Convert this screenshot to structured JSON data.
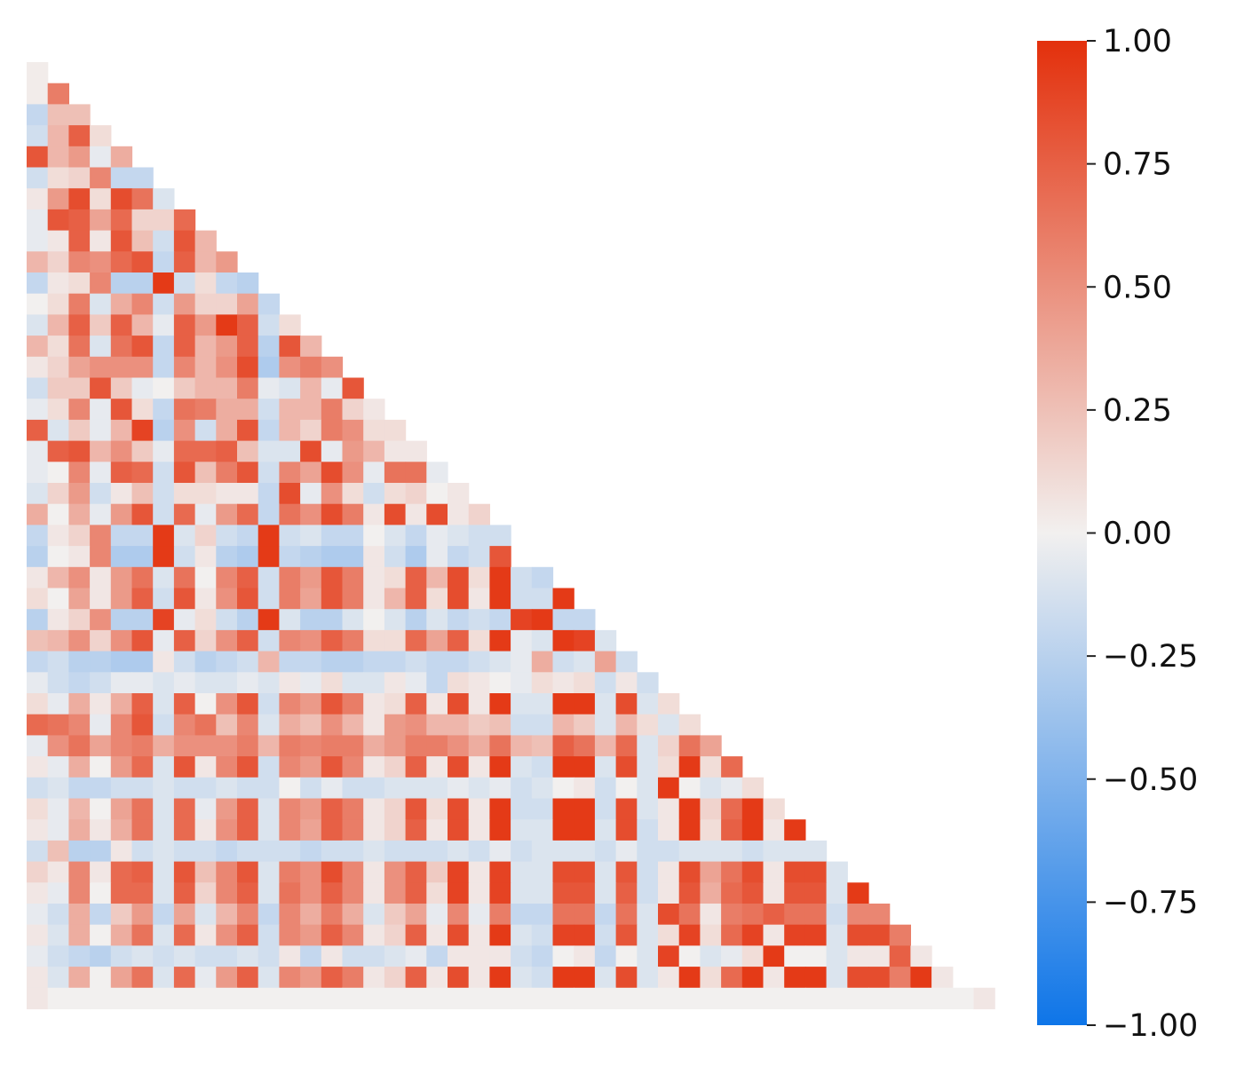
{
  "chart_data": {
    "type": "heatmap",
    "layout": "lower-triangle",
    "size": 46,
    "value_range": [
      -1,
      1
    ],
    "colorbar": {
      "colors": {
        "low": "#0E75E8",
        "mid": "#F2F0EF",
        "high": "#E3300C"
      },
      "ticks": [
        1.0,
        0.75,
        0.5,
        0.25,
        0.0,
        -0.25,
        -0.5,
        -0.75,
        -1.0
      ],
      "tick_labels": [
        "1.00",
        "0.75",
        "0.50",
        "0.25",
        "0.00",
        "−0.25",
        "−0.50",
        "−0.75",
        "−1.00"
      ]
    },
    "rows": [
      [
        0.02
      ],
      [
        0.02,
        0.6
      ],
      [
        -0.2,
        0.25,
        0.25
      ],
      [
        -0.15,
        0.3,
        0.75,
        0.1
      ],
      [
        0.8,
        0.3,
        0.45,
        -0.05,
        0.35
      ],
      [
        -0.15,
        0.1,
        0.15,
        0.55,
        -0.2,
        -0.2
      ],
      [
        0.05,
        0.45,
        0.85,
        0.1,
        0.85,
        0.65,
        -0.1
      ],
      [
        -0.05,
        0.8,
        0.75,
        0.4,
        0.7,
        0.15,
        0.15,
        0.7
      ],
      [
        -0.05,
        0.05,
        0.75,
        0.05,
        0.8,
        0.25,
        -0.15,
        0.8,
        0.3
      ],
      [
        0.3,
        0.15,
        0.55,
        0.5,
        0.7,
        0.8,
        -0.2,
        0.75,
        0.3,
        0.45
      ],
      [
        -0.2,
        0.05,
        0.1,
        0.55,
        -0.25,
        -0.25,
        0.95,
        -0.15,
        0.1,
        -0.2,
        -0.25
      ],
      [
        0.0,
        0.1,
        0.6,
        -0.1,
        0.35,
        0.55,
        -0.15,
        0.45,
        0.15,
        0.15,
        0.4,
        -0.2
      ],
      [
        -0.1,
        0.3,
        0.75,
        0.2,
        0.75,
        0.3,
        -0.05,
        0.75,
        0.45,
        0.95,
        0.75,
        -0.15,
        0.1
      ],
      [
        0.3,
        0.1,
        0.65,
        -0.1,
        0.65,
        0.8,
        -0.2,
        0.75,
        0.3,
        0.45,
        0.75,
        -0.25,
        0.8,
        0.3
      ],
      [
        0.05,
        0.15,
        0.4,
        0.5,
        0.5,
        0.5,
        -0.2,
        0.55,
        0.3,
        0.5,
        0.85,
        -0.3,
        0.5,
        0.6,
        0.5
      ],
      [
        -0.15,
        0.2,
        0.2,
        0.8,
        0.2,
        -0.05,
        0.0,
        0.2,
        0.3,
        0.3,
        0.6,
        -0.05,
        -0.1,
        0.3,
        -0.05,
        0.8
      ],
      [
        -0.05,
        0.1,
        0.55,
        -0.05,
        0.8,
        0.1,
        -0.2,
        0.65,
        0.6,
        0.35,
        0.35,
        -0.15,
        0.3,
        0.3,
        0.6,
        0.15,
        0.05
      ],
      [
        0.75,
        -0.1,
        0.2,
        -0.05,
        0.3,
        0.9,
        -0.25,
        0.5,
        -0.15,
        0.35,
        0.8,
        -0.2,
        0.3,
        0.15,
        0.6,
        0.5,
        0.1,
        0.1
      ],
      [
        -0.05,
        0.75,
        0.8,
        0.3,
        0.5,
        0.2,
        -0.05,
        0.7,
        0.7,
        0.75,
        0.25,
        -0.1,
        -0.1,
        0.85,
        -0.05,
        0.45,
        0.3,
        0.05,
        0.05
      ],
      [
        -0.05,
        0.0,
        0.55,
        -0.05,
        0.75,
        0.7,
        -0.15,
        0.8,
        0.25,
        0.6,
        0.8,
        -0.15,
        0.55,
        0.4,
        0.85,
        0.5,
        -0.05,
        0.65,
        0.65,
        -0.05
      ],
      [
        -0.1,
        0.15,
        0.45,
        -0.15,
        0.05,
        0.25,
        -0.15,
        0.1,
        0.1,
        0.05,
        0.05,
        -0.2,
        0.85,
        -0.05,
        0.5,
        0.1,
        -0.15,
        0.1,
        0.15,
        0.0,
        0.05
      ],
      [
        0.35,
        0.0,
        0.35,
        -0.05,
        0.45,
        0.8,
        -0.15,
        0.7,
        -0.05,
        0.45,
        0.7,
        -0.2,
        0.65,
        0.5,
        0.85,
        0.6,
        0.05,
        0.85,
        0.05,
        0.85,
        0.05,
        0.15
      ],
      [
        -0.2,
        0.05,
        0.15,
        0.55,
        -0.2,
        -0.2,
        0.95,
        -0.1,
        0.15,
        -0.15,
        -0.2,
        0.95,
        -0.15,
        -0.1,
        -0.2,
        -0.2,
        0.0,
        -0.1,
        -0.2,
        -0.05,
        -0.1,
        -0.15,
        -0.15
      ],
      [
        -0.25,
        0.0,
        0.05,
        0.55,
        -0.3,
        -0.3,
        0.95,
        -0.15,
        0.05,
        -0.25,
        -0.3,
        0.95,
        -0.2,
        -0.25,
        -0.3,
        -0.3,
        0.05,
        -0.15,
        -0.3,
        -0.05,
        -0.2,
        -0.15,
        0.8
      ],
      [
        0.05,
        0.3,
        0.5,
        0.05,
        0.45,
        0.65,
        -0.1,
        0.65,
        0.0,
        0.55,
        0.75,
        -0.15,
        0.6,
        0.45,
        0.8,
        0.6,
        0.05,
        0.1,
        0.75,
        0.3,
        0.85,
        0.1,
        0.95,
        -0.15,
        -0.2
      ],
      [
        0.1,
        0.0,
        0.4,
        0.05,
        0.45,
        0.75,
        -0.15,
        0.8,
        0.05,
        0.5,
        0.8,
        -0.15,
        0.6,
        0.4,
        0.8,
        0.6,
        0.05,
        0.3,
        0.75,
        0.1,
        0.85,
        0.05,
        0.95,
        -0.15,
        -0.15,
        0.95
      ],
      [
        -0.25,
        0.05,
        0.15,
        0.5,
        -0.25,
        -0.25,
        0.9,
        -0.05,
        0.1,
        -0.15,
        -0.25,
        0.95,
        -0.1,
        -0.25,
        -0.25,
        -0.1,
        0.0,
        -0.1,
        -0.25,
        -0.1,
        -0.2,
        -0.15,
        -0.2,
        0.9,
        0.95,
        -0.2,
        -0.2
      ],
      [
        0.25,
        0.3,
        0.5,
        0.15,
        0.5,
        0.8,
        -0.05,
        0.75,
        0.15,
        0.5,
        0.75,
        -0.15,
        0.55,
        0.5,
        0.75,
        0.6,
        0.1,
        0.1,
        0.7,
        0.4,
        0.75,
        0.1,
        0.95,
        -0.05,
        -0.1,
        0.95,
        0.9,
        -0.1
      ],
      [
        -0.2,
        -0.15,
        -0.25,
        -0.25,
        -0.3,
        -0.3,
        0.05,
        -0.15,
        -0.25,
        -0.2,
        -0.15,
        0.3,
        -0.2,
        -0.2,
        -0.25,
        -0.25,
        -0.2,
        -0.2,
        -0.15,
        -0.2,
        -0.2,
        -0.15,
        -0.1,
        -0.05,
        0.35,
        -0.15,
        -0.1,
        0.4,
        -0.15
      ],
      [
        -0.05,
        -0.15,
        -0.2,
        -0.15,
        -0.05,
        -0.05,
        -0.1,
        -0.05,
        -0.1,
        -0.1,
        -0.05,
        -0.1,
        0.05,
        -0.05,
        0.1,
        -0.1,
        -0.1,
        0.05,
        -0.05,
        -0.2,
        0.1,
        0.05,
        0.0,
        -0.05,
        0.1,
        0.05,
        0.1,
        -0.15,
        0.05,
        -0.15
      ],
      [
        0.1,
        -0.05,
        0.35,
        0.05,
        0.35,
        0.75,
        -0.1,
        0.75,
        0.0,
        0.5,
        0.8,
        -0.15,
        0.55,
        0.45,
        0.8,
        0.6,
        0.05,
        0.1,
        0.75,
        0.05,
        0.85,
        0.05,
        0.95,
        -0.1,
        -0.1,
        0.95,
        0.95,
        -0.1,
        0.85,
        -0.1,
        0.1
      ],
      [
        0.7,
        0.65,
        0.55,
        -0.05,
        0.55,
        0.8,
        -0.15,
        0.55,
        0.65,
        0.25,
        0.55,
        -0.1,
        0.35,
        0.25,
        0.5,
        0.3,
        0.05,
        0.45,
        0.5,
        0.3,
        0.3,
        0.2,
        0.25,
        -0.15,
        -0.15,
        0.3,
        0.2,
        -0.1,
        0.3,
        0.1,
        -0.1,
        0.1
      ],
      [
        -0.05,
        0.5,
        0.65,
        0.4,
        0.55,
        0.6,
        0.35,
        0.5,
        0.5,
        0.5,
        0.6,
        0.3,
        0.6,
        0.55,
        0.6,
        0.6,
        0.35,
        0.45,
        0.6,
        0.6,
        0.5,
        0.35,
        0.65,
        0.3,
        0.25,
        0.75,
        0.65,
        0.3,
        0.7,
        -0.1,
        0.15,
        0.65,
        0.4
      ],
      [
        0.05,
        -0.05,
        0.35,
        0.0,
        0.45,
        0.7,
        -0.1,
        0.8,
        0.05,
        0.55,
        0.8,
        -0.15,
        0.55,
        0.45,
        0.8,
        0.55,
        0.05,
        0.15,
        0.75,
        0.05,
        0.85,
        0.05,
        0.95,
        -0.1,
        -0.15,
        0.95,
        0.95,
        -0.1,
        0.85,
        -0.1,
        0.1,
        0.95,
        0.1,
        0.7
      ],
      [
        -0.15,
        -0.1,
        -0.2,
        -0.2,
        -0.15,
        -0.15,
        -0.1,
        -0.15,
        -0.15,
        -0.1,
        -0.15,
        -0.15,
        0.0,
        -0.15,
        -0.05,
        -0.15,
        -0.15,
        -0.1,
        -0.1,
        -0.1,
        -0.05,
        -0.1,
        -0.05,
        -0.15,
        -0.1,
        0.0,
        0.05,
        -0.15,
        0.0,
        -0.1,
        0.95,
        0.0,
        -0.1,
        -0.05,
        0.1
      ],
      [
        0.1,
        -0.05,
        0.3,
        0.0,
        0.4,
        0.65,
        -0.1,
        0.7,
        -0.05,
        0.45,
        0.75,
        -0.1,
        0.55,
        0.45,
        0.75,
        0.6,
        0.05,
        0.15,
        0.8,
        0.1,
        0.85,
        0.05,
        0.95,
        -0.15,
        -0.15,
        0.95,
        0.95,
        -0.15,
        0.85,
        -0.1,
        0.05,
        0.95,
        0.15,
        0.7,
        0.95,
        0.1
      ],
      [
        0.05,
        -0.05,
        0.35,
        0.05,
        0.35,
        0.65,
        -0.1,
        0.7,
        0.05,
        0.5,
        0.75,
        -0.1,
        0.55,
        0.4,
        0.75,
        0.6,
        0.05,
        0.15,
        0.75,
        0.05,
        0.85,
        0.05,
        0.95,
        -0.1,
        -0.1,
        0.95,
        0.95,
        -0.1,
        0.85,
        -0.15,
        0.05,
        0.95,
        0.1,
        0.75,
        0.95,
        0.05,
        0.95
      ],
      [
        -0.15,
        0.25,
        -0.25,
        -0.25,
        0.05,
        -0.15,
        -0.1,
        -0.15,
        -0.15,
        -0.2,
        -0.15,
        -0.15,
        -0.15,
        -0.2,
        -0.15,
        -0.15,
        -0.1,
        -0.15,
        -0.15,
        -0.15,
        -0.1,
        -0.15,
        -0.05,
        -0.15,
        -0.1,
        -0.1,
        -0.1,
        -0.15,
        -0.05,
        -0.15,
        -0.15,
        -0.1,
        -0.1,
        -0.1,
        -0.15,
        -0.1,
        -0.1,
        -0.1
      ],
      [
        0.15,
        0.05,
        0.55,
        0.05,
        0.7,
        0.75,
        -0.1,
        0.8,
        0.25,
        0.55,
        0.8,
        -0.1,
        0.6,
        0.5,
        0.85,
        0.55,
        0.05,
        0.5,
        0.75,
        0.2,
        0.9,
        0.05,
        0.9,
        -0.1,
        -0.1,
        0.85,
        0.85,
        -0.1,
        0.8,
        -0.15,
        0.05,
        0.85,
        0.4,
        0.65,
        0.85,
        0.05,
        0.85,
        0.85,
        -0.1
      ],
      [
        0.05,
        -0.05,
        0.55,
        0.0,
        0.7,
        0.7,
        -0.1,
        0.75,
        0.15,
        0.55,
        0.75,
        -0.1,
        0.65,
        0.5,
        0.75,
        0.55,
        0.05,
        0.5,
        0.75,
        0.1,
        0.9,
        0.05,
        0.9,
        -0.1,
        -0.1,
        0.8,
        0.8,
        -0.1,
        0.75,
        -0.15,
        0.05,
        0.8,
        0.35,
        0.7,
        0.8,
        0.05,
        0.8,
        0.8,
        -0.1,
        0.95
      ],
      [
        -0.05,
        -0.15,
        0.35,
        -0.2,
        0.2,
        0.45,
        -0.2,
        0.4,
        -0.1,
        0.3,
        0.55,
        -0.2,
        0.55,
        0.35,
        0.6,
        0.35,
        -0.1,
        0.2,
        0.4,
        -0.05,
        0.55,
        -0.05,
        0.6,
        -0.2,
        -0.2,
        0.65,
        0.65,
        -0.2,
        0.65,
        -0.1,
        0.85,
        0.65,
        0.05,
        0.6,
        0.65,
        0.75,
        0.65,
        0.65,
        -0.15,
        0.55,
        0.55
      ],
      [
        0.05,
        -0.1,
        0.35,
        0.0,
        0.35,
        0.65,
        -0.1,
        0.7,
        0.05,
        0.5,
        0.75,
        -0.15,
        0.55,
        0.45,
        0.75,
        0.55,
        0.05,
        0.15,
        0.75,
        0.05,
        0.85,
        0.05,
        0.95,
        -0.1,
        -0.15,
        0.9,
        0.9,
        -0.15,
        0.8,
        -0.1,
        0.1,
        0.9,
        0.1,
        0.7,
        0.9,
        0.05,
        0.9,
        0.9,
        -0.1,
        0.85,
        0.85,
        0.6
      ],
      [
        -0.05,
        -0.15,
        -0.2,
        -0.25,
        -0.15,
        -0.1,
        -0.15,
        -0.1,
        -0.15,
        -0.15,
        -0.1,
        -0.15,
        0.05,
        -0.2,
        0.05,
        -0.15,
        -0.15,
        -0.1,
        -0.05,
        -0.2,
        0.05,
        0.05,
        0.05,
        -0.15,
        -0.2,
        0.0,
        0.05,
        -0.2,
        0.0,
        -0.1,
        0.9,
        0.0,
        -0.1,
        -0.05,
        0.1,
        0.95,
        0.0,
        0.0,
        -0.1,
        0.05,
        0.05,
        0.75,
        0.05
      ],
      [
        0.05,
        -0.1,
        0.35,
        0.0,
        0.4,
        0.65,
        -0.1,
        0.7,
        -0.05,
        0.45,
        0.75,
        -0.1,
        0.55,
        0.45,
        0.75,
        0.6,
        0.05,
        0.15,
        0.75,
        0.05,
        0.85,
        0.05,
        0.95,
        -0.1,
        -0.15,
        0.95,
        0.95,
        -0.1,
        0.85,
        -0.1,
        0.05,
        0.95,
        0.1,
        0.7,
        0.95,
        0.05,
        0.95,
        0.95,
        -0.1,
        0.85,
        0.85,
        0.6,
        0.95,
        0.05
      ],
      [
        0.05,
        0.0,
        0.0,
        0.0,
        0.0,
        0.0,
        0.0,
        0.0,
        0.0,
        0.0,
        0.0,
        0.0,
        0.0,
        0.0,
        0.0,
        0.0,
        0.0,
        0.0,
        0.0,
        0.0,
        0.0,
        0.0,
        0.0,
        0.0,
        0.0,
        0.0,
        0.0,
        0.0,
        0.0,
        0.0,
        0.0,
        0.0,
        0.0,
        0.0,
        0.0,
        0.0,
        0.0,
        0.0,
        0.0,
        0.0,
        0.0,
        0.0,
        0.0,
        0.0,
        0.0,
        0.05
      ]
    ]
  }
}
